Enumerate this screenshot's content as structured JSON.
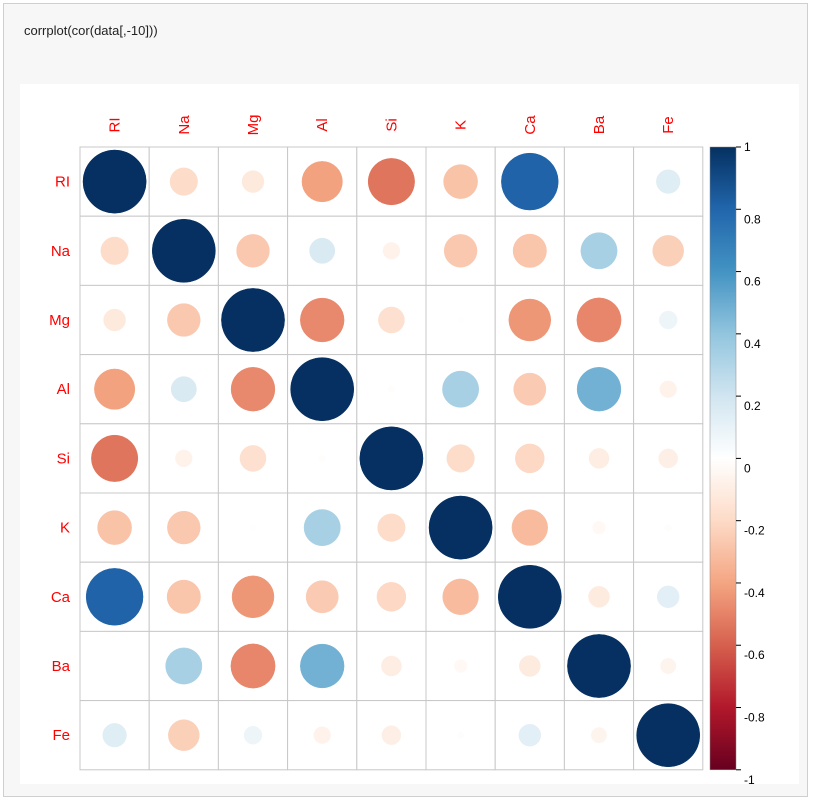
{
  "code": {
    "command": "corrplot(cor(data[,-10]))"
  },
  "chart_data": {
    "type": "heatmap",
    "variables": [
      "RI",
      "Na",
      "Mg",
      "Al",
      "Si",
      "K",
      "Ca",
      "Ba",
      "Fe"
    ],
    "matrix": [
      [
        1.0,
        -0.19,
        -0.12,
        -0.41,
        -0.54,
        -0.29,
        0.81,
        0.0,
        0.14
      ],
      [
        -0.19,
        1.0,
        -0.27,
        0.16,
        -0.07,
        -0.27,
        -0.28,
        0.33,
        -0.24
      ],
      [
        -0.12,
        -0.27,
        1.0,
        -0.48,
        -0.17,
        0.01,
        -0.44,
        -0.49,
        0.08
      ],
      [
        -0.41,
        0.16,
        -0.48,
        1.0,
        -0.01,
        0.33,
        -0.26,
        0.48,
        -0.07
      ],
      [
        -0.54,
        -0.07,
        -0.17,
        -0.01,
        1.0,
        -0.19,
        -0.21,
        -0.1,
        -0.09
      ],
      [
        -0.29,
        -0.27,
        0.01,
        0.33,
        -0.19,
        1.0,
        -0.32,
        -0.04,
        -0.01
      ],
      [
        0.81,
        -0.28,
        -0.44,
        -0.26,
        -0.21,
        -0.32,
        1.0,
        -0.11,
        0.12
      ],
      [
        0.0,
        0.33,
        -0.49,
        0.48,
        -0.1,
        -0.04,
        -0.11,
        1.0,
        -0.06
      ],
      [
        0.14,
        -0.24,
        0.08,
        -0.07,
        -0.09,
        -0.01,
        0.12,
        -0.06,
        1.0
      ]
    ],
    "colorbar": {
      "range": [
        -1,
        1
      ],
      "ticks": [
        "1",
        "0.8",
        "0.6",
        "0.4",
        "0.2",
        "0",
        "-0.2",
        "-0.4",
        "-0.6",
        "-0.8",
        "-1"
      ],
      "colors": [
        "#67001f",
        "#b2182b",
        "#d6604d",
        "#f4a582",
        "#fddbc7",
        "#ffffff",
        "#d1e5f0",
        "#92c5de",
        "#4393c3",
        "#2166ac",
        "#053061"
      ]
    },
    "label_color": "#ff0000",
    "grid": true
  }
}
